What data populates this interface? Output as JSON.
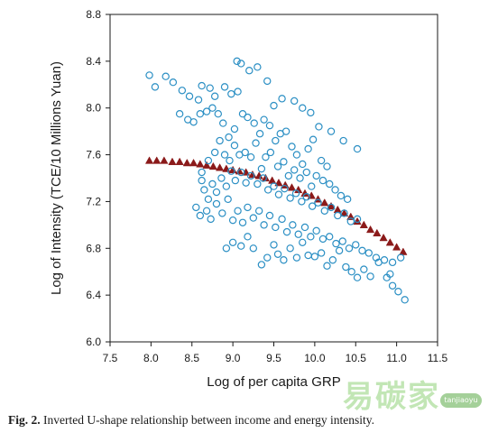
{
  "chart_data": {
    "type": "scatter",
    "xlabel": "Log of per capita GRP",
    "ylabel": "Log of Intensity (TCE/10 Millions Yuan)",
    "xlim": [
      7.5,
      11.5
    ],
    "ylim": [
      6.0,
      8.8
    ],
    "x_ticks": [
      "7.5",
      "8.0",
      "8.5",
      "9.0",
      "9.5",
      "10.0",
      "10.5",
      "11.0",
      "11.5"
    ],
    "y_ticks": [
      "6.0",
      "6.4",
      "6.8",
      "7.2",
      "7.6",
      "8.0",
      "8.4",
      "8.8"
    ],
    "grid": false,
    "legend": "none",
    "colors": {
      "observed": "#2b8fc4",
      "fitted": "#8b1a1a"
    },
    "series": [
      {
        "marker": "open-circle",
        "points": [
          [
            7.98,
            8.28
          ],
          [
            8.05,
            8.18
          ],
          [
            8.18,
            8.27
          ],
          [
            8.27,
            8.22
          ],
          [
            8.38,
            8.15
          ],
          [
            8.47,
            8.1
          ],
          [
            8.58,
            8.07
          ],
          [
            8.62,
            8.19
          ],
          [
            8.72,
            8.17
          ],
          [
            8.78,
            8.1
          ],
          [
            8.9,
            8.18
          ],
          [
            8.98,
            8.12
          ],
          [
            9.05,
            8.4
          ],
          [
            9.1,
            8.38
          ],
          [
            9.2,
            8.32
          ],
          [
            9.3,
            8.35
          ],
          [
            9.42,
            8.23
          ],
          [
            9.06,
            8.14
          ],
          [
            9.5,
            8.02
          ],
          [
            9.6,
            8.08
          ],
          [
            9.75,
            8.06
          ],
          [
            9.85,
            8.0
          ],
          [
            9.95,
            7.96
          ],
          [
            10.05,
            7.84
          ],
          [
            10.2,
            7.8
          ],
          [
            10.35,
            7.72
          ],
          [
            10.52,
            7.65
          ],
          [
            8.35,
            7.95
          ],
          [
            8.45,
            7.9
          ],
          [
            8.52,
            7.88
          ],
          [
            8.6,
            7.95
          ],
          [
            8.68,
            7.97
          ],
          [
            8.75,
            8.0
          ],
          [
            8.82,
            7.95
          ],
          [
            8.88,
            7.87
          ],
          [
            8.95,
            7.75
          ],
          [
            9.02,
            7.82
          ],
          [
            9.12,
            7.95
          ],
          [
            9.18,
            7.92
          ],
          [
            9.26,
            7.87
          ],
          [
            9.33,
            7.78
          ],
          [
            9.38,
            7.9
          ],
          [
            9.45,
            7.85
          ],
          [
            9.52,
            7.72
          ],
          [
            9.58,
            7.78
          ],
          [
            9.65,
            7.8
          ],
          [
            9.72,
            7.67
          ],
          [
            9.78,
            7.6
          ],
          [
            9.85,
            7.52
          ],
          [
            9.92,
            7.65
          ],
          [
            9.98,
            7.73
          ],
          [
            10.08,
            7.55
          ],
          [
            10.15,
            7.5
          ],
          [
            8.62,
            7.45
          ],
          [
            8.7,
            7.55
          ],
          [
            8.78,
            7.62
          ],
          [
            8.84,
            7.72
          ],
          [
            8.9,
            7.6
          ],
          [
            8.96,
            7.55
          ],
          [
            9.02,
            7.68
          ],
          [
            9.08,
            7.6
          ],
          [
            9.15,
            7.62
          ],
          [
            9.22,
            7.58
          ],
          [
            9.28,
            7.7
          ],
          [
            9.35,
            7.48
          ],
          [
            9.4,
            7.58
          ],
          [
            9.46,
            7.62
          ],
          [
            9.55,
            7.5
          ],
          [
            9.62,
            7.54
          ],
          [
            9.68,
            7.42
          ],
          [
            9.75,
            7.47
          ],
          [
            9.82,
            7.4
          ],
          [
            9.9,
            7.45
          ],
          [
            9.96,
            7.33
          ],
          [
            10.02,
            7.42
          ],
          [
            10.1,
            7.38
          ],
          [
            10.18,
            7.35
          ],
          [
            10.25,
            7.3
          ],
          [
            10.32,
            7.25
          ],
          [
            10.4,
            7.22
          ],
          [
            8.62,
            7.38
          ],
          [
            8.65,
            7.3
          ],
          [
            8.7,
            7.22
          ],
          [
            8.75,
            7.35
          ],
          [
            8.8,
            7.28
          ],
          [
            8.86,
            7.4
          ],
          [
            8.92,
            7.33
          ],
          [
            8.98,
            7.46
          ],
          [
            9.03,
            7.38
          ],
          [
            9.1,
            7.45
          ],
          [
            9.16,
            7.36
          ],
          [
            9.22,
            7.42
          ],
          [
            9.3,
            7.35
          ],
          [
            9.37,
            7.4
          ],
          [
            9.43,
            7.3
          ],
          [
            9.5,
            7.33
          ],
          [
            9.56,
            7.26
          ],
          [
            9.63,
            7.31
          ],
          [
            9.7,
            7.23
          ],
          [
            9.77,
            7.27
          ],
          [
            9.84,
            7.2
          ],
          [
            9.9,
            7.24
          ],
          [
            9.97,
            7.16
          ],
          [
            10.04,
            7.19
          ],
          [
            10.12,
            7.12
          ],
          [
            10.2,
            7.15
          ],
          [
            10.28,
            7.08
          ],
          [
            10.36,
            7.1
          ],
          [
            10.44,
            7.03
          ],
          [
            10.52,
            7.05
          ],
          [
            8.55,
            7.15
          ],
          [
            8.6,
            7.08
          ],
          [
            8.68,
            7.12
          ],
          [
            8.73,
            7.05
          ],
          [
            8.8,
            7.18
          ],
          [
            8.87,
            7.1
          ],
          [
            8.94,
            7.22
          ],
          [
            9.0,
            7.04
          ],
          [
            9.06,
            7.12
          ],
          [
            9.12,
            7.02
          ],
          [
            9.18,
            7.15
          ],
          [
            9.25,
            7.06
          ],
          [
            9.32,
            7.12
          ],
          [
            9.38,
            7.0
          ],
          [
            9.45,
            7.08
          ],
          [
            9.52,
            6.98
          ],
          [
            9.6,
            7.05
          ],
          [
            9.66,
            6.94
          ],
          [
            9.73,
            7.0
          ],
          [
            9.8,
            6.92
          ],
          [
            9.88,
            6.98
          ],
          [
            9.95,
            6.9
          ],
          [
            10.02,
            6.95
          ],
          [
            10.1,
            6.88
          ],
          [
            10.18,
            6.9
          ],
          [
            10.26,
            6.84
          ],
          [
            10.34,
            6.86
          ],
          [
            10.42,
            6.8
          ],
          [
            10.5,
            6.83
          ],
          [
            10.58,
            6.78
          ],
          [
            10.66,
            6.76
          ],
          [
            10.75,
            6.72
          ],
          [
            10.85,
            6.7
          ],
          [
            10.95,
            6.68
          ],
          [
            11.05,
            6.72
          ],
          [
            8.92,
            6.8
          ],
          [
            9.0,
            6.85
          ],
          [
            9.1,
            6.82
          ],
          [
            9.18,
            6.9
          ],
          [
            9.25,
            6.8
          ],
          [
            9.35,
            6.66
          ],
          [
            9.42,
            6.72
          ],
          [
            9.5,
            6.83
          ],
          [
            9.55,
            6.75
          ],
          [
            9.62,
            6.7
          ],
          [
            9.7,
            6.8
          ],
          [
            9.78,
            6.72
          ],
          [
            9.85,
            6.85
          ],
          [
            9.92,
            6.74
          ],
          [
            10.0,
            6.73
          ],
          [
            10.08,
            6.76
          ],
          [
            10.15,
            6.65
          ],
          [
            10.22,
            6.7
          ],
          [
            10.3,
            6.78
          ],
          [
            10.38,
            6.64
          ],
          [
            10.45,
            6.6
          ],
          [
            10.52,
            6.55
          ],
          [
            10.6,
            6.62
          ],
          [
            10.68,
            6.56
          ],
          [
            10.78,
            6.68
          ],
          [
            10.88,
            6.55
          ],
          [
            10.95,
            6.48
          ],
          [
            11.02,
            6.43
          ],
          [
            11.1,
            6.36
          ],
          [
            10.92,
            6.58
          ]
        ]
      },
      {
        "marker": "filled-triangle",
        "points": [
          [
            7.98,
            7.55
          ],
          [
            8.07,
            7.55
          ],
          [
            8.16,
            7.55
          ],
          [
            8.26,
            7.54
          ],
          [
            8.35,
            7.54
          ],
          [
            8.44,
            7.53
          ],
          [
            8.52,
            7.53
          ],
          [
            8.6,
            7.52
          ],
          [
            8.68,
            7.51
          ],
          [
            8.76,
            7.5
          ],
          [
            8.84,
            7.49
          ],
          [
            8.92,
            7.48
          ],
          [
            9.0,
            7.47
          ],
          [
            9.08,
            7.46
          ],
          [
            9.16,
            7.45
          ],
          [
            9.24,
            7.43
          ],
          [
            9.32,
            7.42
          ],
          [
            9.4,
            7.4
          ],
          [
            9.48,
            7.38
          ],
          [
            9.56,
            7.36
          ],
          [
            9.64,
            7.34
          ],
          [
            9.72,
            7.32
          ],
          [
            9.8,
            7.3
          ],
          [
            9.88,
            7.27
          ],
          [
            9.96,
            7.25
          ],
          [
            10.04,
            7.22
          ],
          [
            10.12,
            7.19
          ],
          [
            10.2,
            7.16
          ],
          [
            10.28,
            7.13
          ],
          [
            10.36,
            7.1
          ],
          [
            10.44,
            7.07
          ],
          [
            10.52,
            7.03
          ],
          [
            10.6,
            7.0
          ],
          [
            10.68,
            6.96
          ],
          [
            10.76,
            6.93
          ],
          [
            10.84,
            6.89
          ],
          [
            10.92,
            6.85
          ],
          [
            11.0,
            6.81
          ],
          [
            11.08,
            6.77
          ]
        ]
      }
    ]
  },
  "caption": {
    "label": "Fig. 2.",
    "text": "Inverted U-shape relationship between income and energy intensity."
  },
  "watermark": {
    "text": "易碳家",
    "badge": "tanjiaoyu"
  }
}
